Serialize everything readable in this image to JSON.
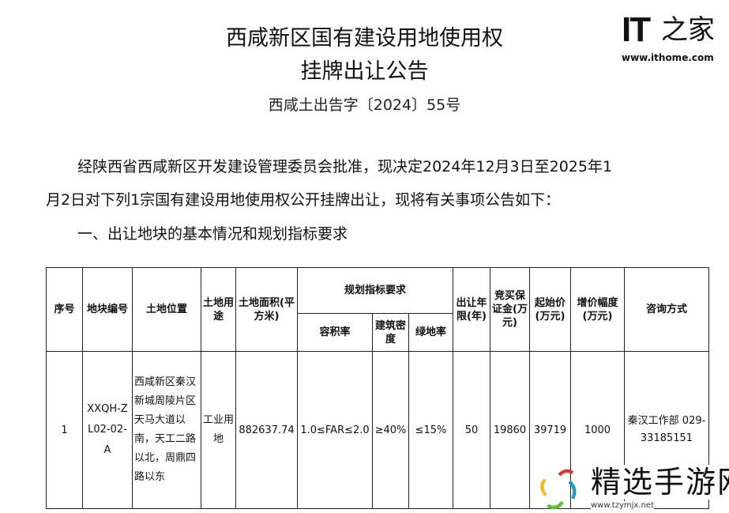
{
  "title_line1": "西咸新区国有建设用地使用权",
  "title_line2": "挂牌出让公告",
  "doc_number": "西咸土出告字〔2024〕55号",
  "para1_line1": "经陕西省西咸新区开发建设管理委员会批准，现决定2024年12月3日至2025年1",
  "para1_line2": "月2日对下列1宗国有建设用地使用权公开挂牌出让，现将有关事项公告如下：",
  "section1": "一、出让地块的基本情况和规划指标要求",
  "logo": {
    "brand": "IT之家",
    "url": "www.ithome.com"
  },
  "watermark": {
    "name": "精选手游网",
    "url": "www.tzymjx.net"
  },
  "table": {
    "headers": {
      "no": "序号",
      "parcel": "地块编号",
      "location": "土地位置",
      "use": "土地用途",
      "area": "土地面积(平方米)",
      "planning": "规划指标要求",
      "far": "容积率",
      "density": "建筑密度",
      "green": "绿地率",
      "term": "出让年限(年)",
      "deposit": "竞买保证金(万元)",
      "start_price": "起始价(万元)",
      "increment": "增价幅度(万元)",
      "contact": "咨询方式"
    },
    "rows": [
      {
        "no": "1",
        "parcel": "XXQH-ZL02-02-A",
        "location": "西咸新区秦汉新城周陵片区天马大道以南，天工二路以北，周鼎四路以东",
        "use": "工业用地",
        "area": "882637.74",
        "far": "1.0≤FAR≤2.0",
        "density": "≥40%",
        "green": "≤15%",
        "term": "50",
        "deposit": "19860",
        "start_price": "39719",
        "increment": "1000",
        "contact": "秦汉工作部 029-33185151"
      }
    ]
  }
}
